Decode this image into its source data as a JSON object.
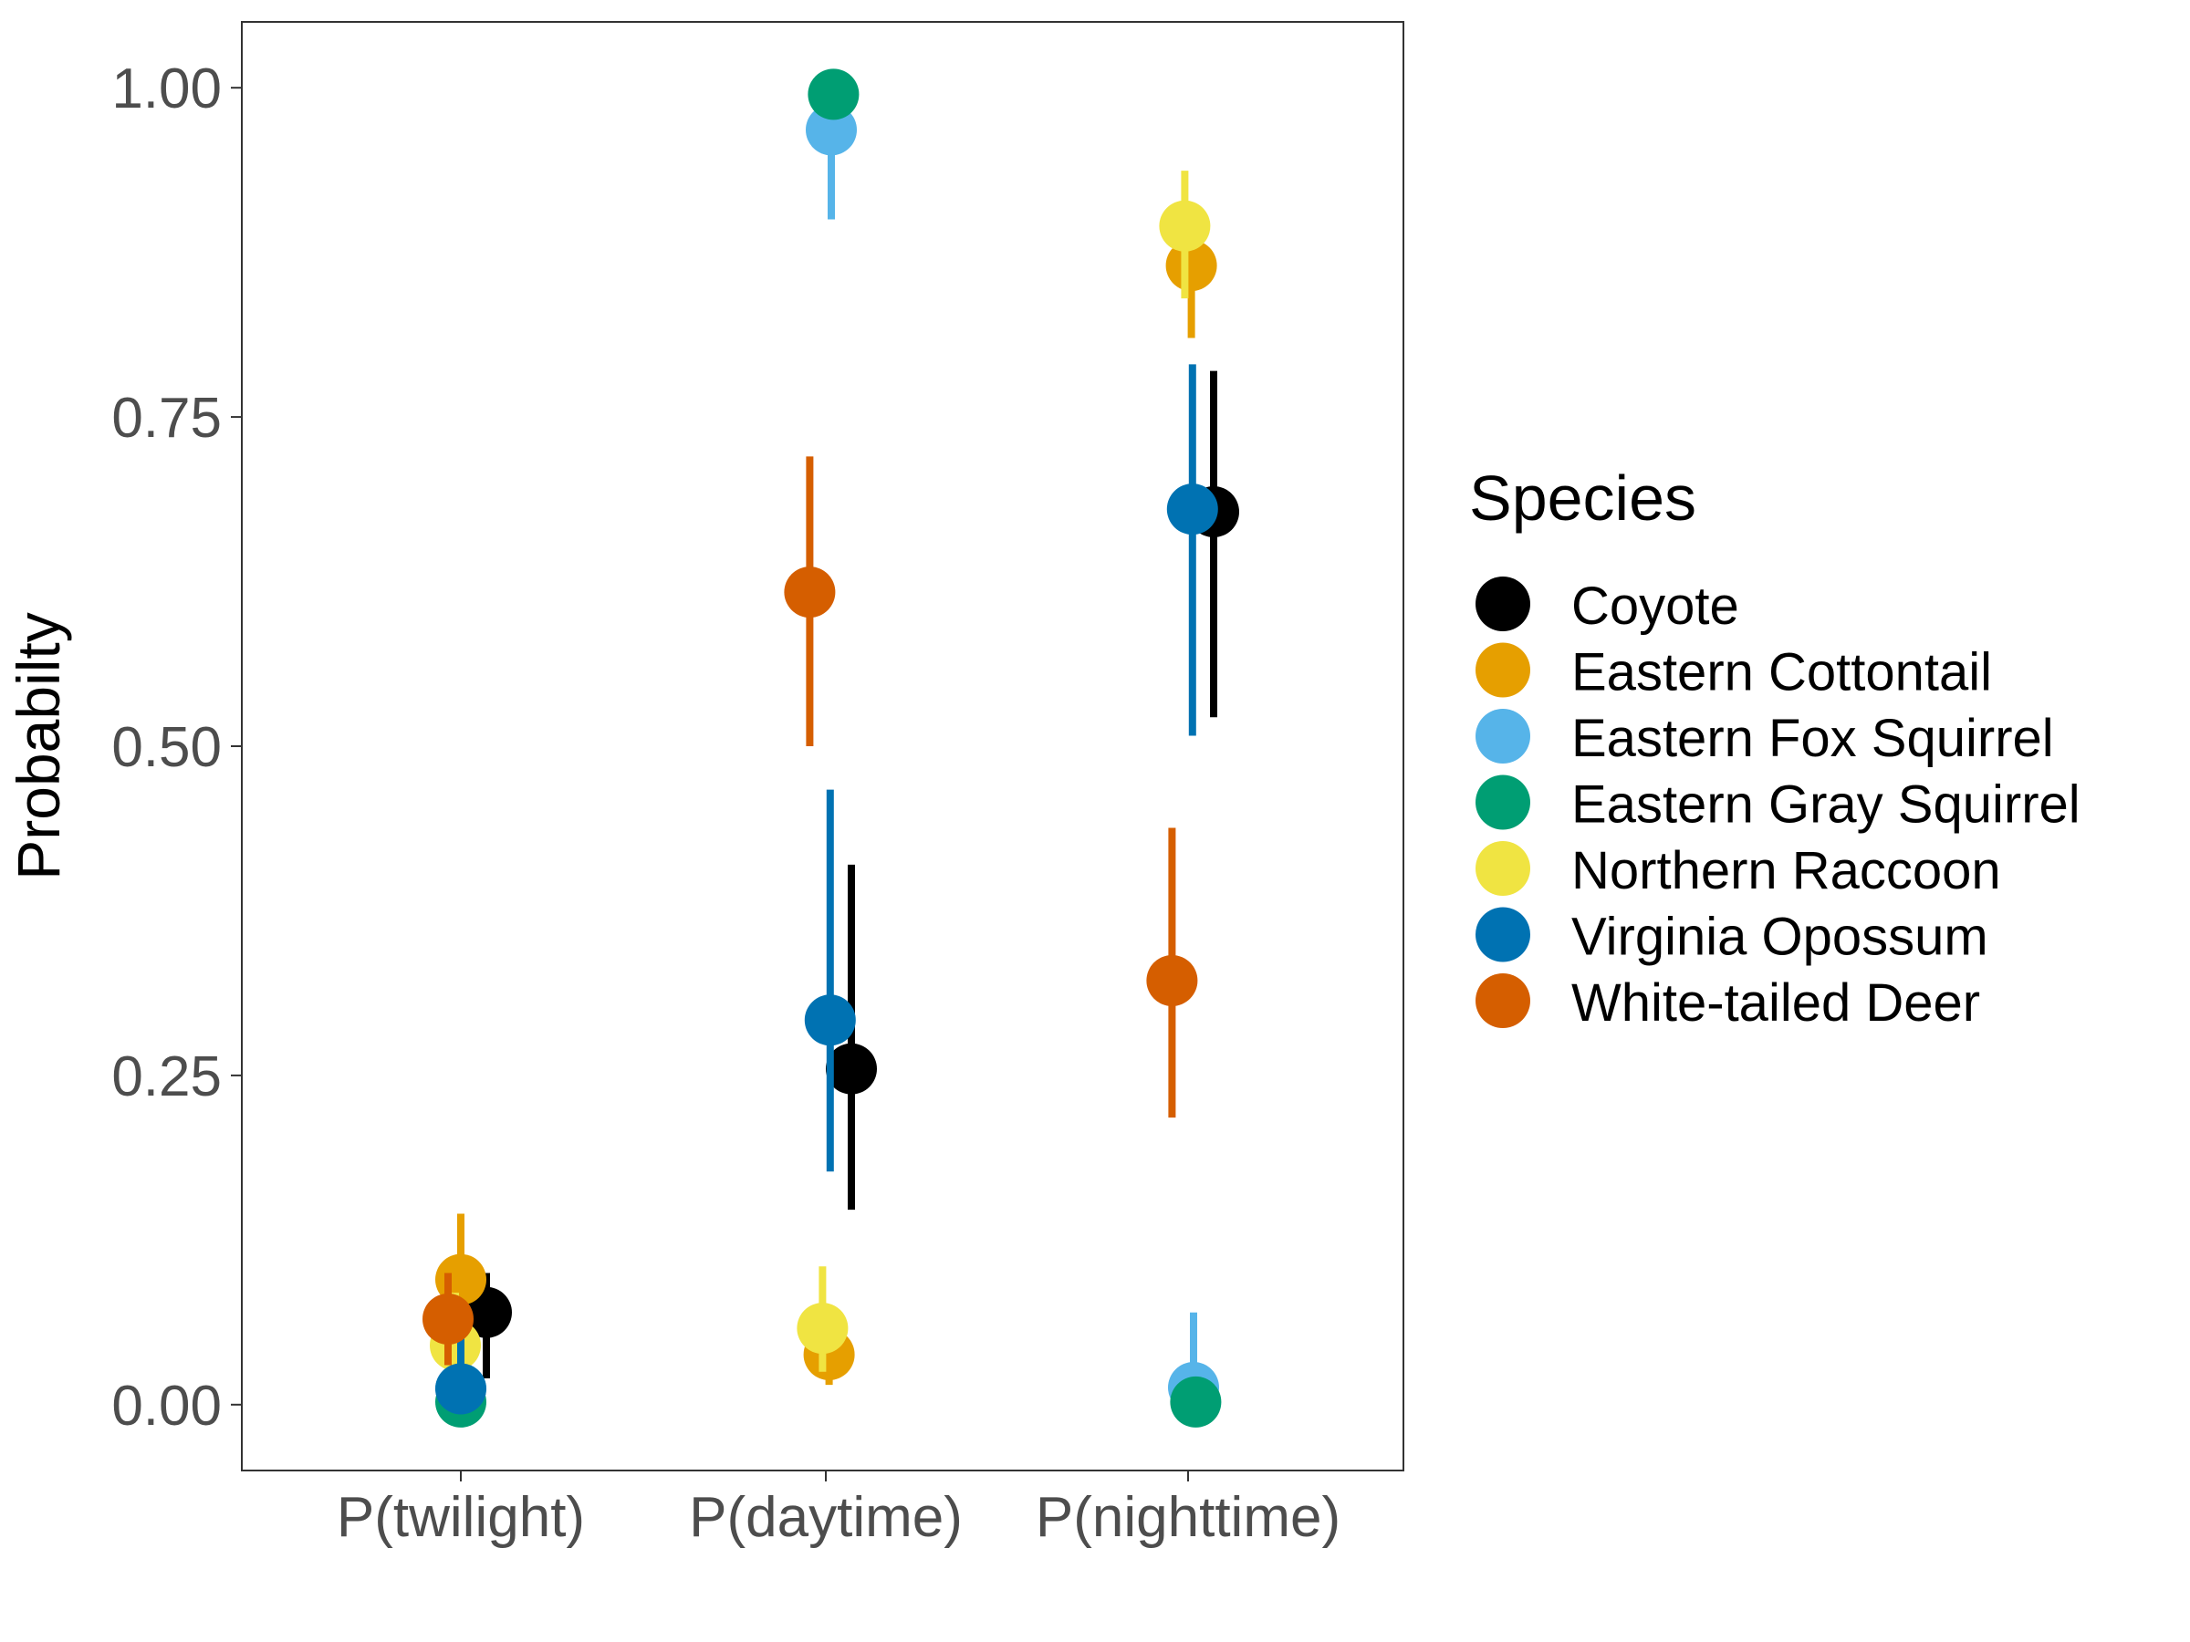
{
  "chart_data": {
    "type": "scatter",
    "xlabel": "",
    "ylabel": "Probabilty",
    "ylim": [
      -0.05,
      1.05
    ],
    "y_ticks": [
      "0.00",
      "0.25",
      "0.50",
      "0.75",
      "1.00"
    ],
    "y_tick_values": [
      0,
      0.25,
      0.5,
      0.75,
      1.0
    ],
    "categories": [
      "P(twilight)",
      "P(daytime)",
      "P(nighttime)"
    ],
    "grid": false,
    "legend_position": "right",
    "legend_title": "Species",
    "series": [
      {
        "name": "Coyote",
        "color": "#000000",
        "values": [
          0.07,
          0.255,
          0.678
        ],
        "lower": [
          0.02,
          0.148,
          0.522
        ],
        "upper": [
          0.1,
          0.41,
          0.785
        ]
      },
      {
        "name": "Eastern Cottontail",
        "color": "#E69F00",
        "values": [
          0.095,
          0.038,
          0.865
        ],
        "lower": [
          0.06,
          0.015,
          0.81
        ],
        "upper": [
          0.145,
          0.07,
          0.91
        ]
      },
      {
        "name": "Eastern Fox Squirrel",
        "color": "#56B4E9",
        "values": [
          0.012,
          0.968,
          0.013
        ],
        "lower": [
          0.003,
          0.9,
          0.003
        ],
        "upper": [
          0.06,
          0.995,
          0.07
        ]
      },
      {
        "name": "Eastern Gray Squirrel",
        "color": "#009E73",
        "values": [
          0.002,
          0.995,
          0.002
        ],
        "lower": [
          0.0,
          0.99,
          0.0
        ],
        "upper": [
          0.01,
          0.999,
          0.01
        ]
      },
      {
        "name": "Northern Raccoon",
        "color": "#F0E442",
        "values": [
          0.045,
          0.058,
          0.895
        ],
        "lower": [
          0.02,
          0.025,
          0.84
        ],
        "upper": [
          0.085,
          0.105,
          0.937
        ]
      },
      {
        "name": "Virginia Opossum",
        "color": "#0072B2",
        "values": [
          0.012,
          0.292,
          0.68
        ],
        "lower": [
          0.002,
          0.177,
          0.508
        ],
        "upper": [
          0.06,
          0.467,
          0.79
        ]
      },
      {
        "name": "White-tailed Deer",
        "color": "#D55E00",
        "values": [
          0.065,
          0.617,
          0.322
        ],
        "lower": [
          0.03,
          0.5,
          0.218
        ],
        "upper": [
          0.1,
          0.72,
          0.438
        ]
      }
    ]
  }
}
